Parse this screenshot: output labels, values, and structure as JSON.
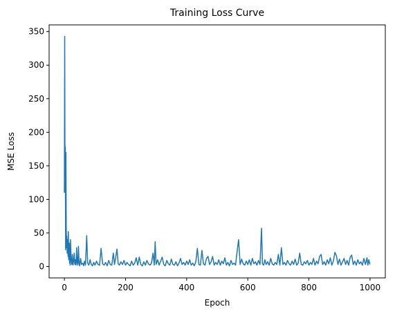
{
  "chart_data": {
    "type": "line",
    "title": "Training Loss Curve",
    "xlabel": "Epoch",
    "ylabel": "MSE Loss",
    "xlim": [
      -50,
      1050
    ],
    "ylim": [
      -17,
      360
    ],
    "x_ticks": [
      0,
      200,
      400,
      600,
      800,
      1000
    ],
    "y_ticks": [
      0,
      50,
      100,
      150,
      200,
      250,
      300,
      350
    ],
    "grid": false,
    "legend": "none",
    "series": [
      {
        "color": "#1f77b4",
        "points": [
          [
            0,
            110
          ],
          [
            1,
            343
          ],
          [
            2,
            130
          ],
          [
            3,
            178
          ],
          [
            4,
            25
          ],
          [
            5,
            170
          ],
          [
            6,
            60
          ],
          [
            7,
            28
          ],
          [
            8,
            45
          ],
          [
            9,
            20
          ],
          [
            10,
            40
          ],
          [
            11,
            30
          ],
          [
            12,
            15
          ],
          [
            13,
            52
          ],
          [
            14,
            10
          ],
          [
            15,
            25
          ],
          [
            16,
            35
          ],
          [
            17,
            5
          ],
          [
            18,
            20
          ],
          [
            19,
            2
          ],
          [
            20,
            40
          ],
          [
            22,
            10
          ],
          [
            24,
            3
          ],
          [
            26,
            18
          ],
          [
            28,
            2
          ],
          [
            30,
            8
          ],
          [
            32,
            20
          ],
          [
            34,
            3
          ],
          [
            36,
            10
          ],
          [
            38,
            2
          ],
          [
            40,
            28
          ],
          [
            42,
            5
          ],
          [
            44,
            2
          ],
          [
            46,
            30
          ],
          [
            48,
            5
          ],
          [
            50,
            1
          ],
          [
            53,
            12
          ],
          [
            56,
            3
          ],
          [
            60,
            5
          ],
          [
            63,
            1
          ],
          [
            66,
            8
          ],
          [
            69,
            2
          ],
          [
            73,
            46
          ],
          [
            76,
            5
          ],
          [
            80,
            2
          ],
          [
            84,
            10
          ],
          [
            88,
            3
          ],
          [
            92,
            1
          ],
          [
            96,
            6
          ],
          [
            100,
            2
          ],
          [
            105,
            8
          ],
          [
            110,
            3
          ],
          [
            115,
            2
          ],
          [
            120,
            27
          ],
          [
            125,
            4
          ],
          [
            130,
            2
          ],
          [
            135,
            6
          ],
          [
            140,
            1
          ],
          [
            145,
            9
          ],
          [
            150,
            3
          ],
          [
            155,
            2
          ],
          [
            160,
            20
          ],
          [
            164,
            3
          ],
          [
            168,
            14
          ],
          [
            172,
            26
          ],
          [
            176,
            4
          ],
          [
            180,
            2
          ],
          [
            185,
            7
          ],
          [
            190,
            3
          ],
          [
            195,
            9
          ],
          [
            200,
            2
          ],
          [
            205,
            6
          ],
          [
            210,
            3
          ],
          [
            215,
            1
          ],
          [
            220,
            8
          ],
          [
            225,
            2
          ],
          [
            230,
            5
          ],
          [
            235,
            13
          ],
          [
            240,
            2
          ],
          [
            245,
            14
          ],
          [
            250,
            3
          ],
          [
            255,
            1
          ],
          [
            260,
            7
          ],
          [
            265,
            2
          ],
          [
            270,
            9
          ],
          [
            275,
            4
          ],
          [
            280,
            2
          ],
          [
            285,
            5
          ],
          [
            290,
            20
          ],
          [
            294,
            2
          ],
          [
            297,
            37
          ],
          [
            300,
            3
          ],
          [
            305,
            10
          ],
          [
            310,
            2
          ],
          [
            315,
            8
          ],
          [
            320,
            14
          ],
          [
            325,
            3
          ],
          [
            330,
            1
          ],
          [
            335,
            9
          ],
          [
            340,
            4
          ],
          [
            345,
            2
          ],
          [
            350,
            11
          ],
          [
            355,
            3
          ],
          [
            360,
            2
          ],
          [
            365,
            7
          ],
          [
            370,
            1
          ],
          [
            375,
            5
          ],
          [
            380,
            12
          ],
          [
            385,
            3
          ],
          [
            390,
            6
          ],
          [
            395,
            2
          ],
          [
            400,
            8
          ],
          [
            405,
            3
          ],
          [
            410,
            10
          ],
          [
            415,
            2
          ],
          [
            420,
            5
          ],
          [
            425,
            1
          ],
          [
            430,
            7
          ],
          [
            435,
            27
          ],
          [
            440,
            3
          ],
          [
            445,
            2
          ],
          [
            450,
            24
          ],
          [
            455,
            4
          ],
          [
            460,
            2
          ],
          [
            465,
            12
          ],
          [
            470,
            15
          ],
          [
            475,
            3
          ],
          [
            480,
            7
          ],
          [
            485,
            15
          ],
          [
            490,
            2
          ],
          [
            495,
            6
          ],
          [
            500,
            3
          ],
          [
            505,
            10
          ],
          [
            510,
            2
          ],
          [
            515,
            8
          ],
          [
            520,
            4
          ],
          [
            525,
            13
          ],
          [
            530,
            2
          ],
          [
            535,
            6
          ],
          [
            540,
            1
          ],
          [
            545,
            9
          ],
          [
            550,
            3
          ],
          [
            555,
            5
          ],
          [
            560,
            2
          ],
          [
            565,
            22
          ],
          [
            570,
            40
          ],
          [
            575,
            3
          ],
          [
            580,
            11
          ],
          [
            585,
            4
          ],
          [
            590,
            2
          ],
          [
            595,
            8
          ],
          [
            600,
            3
          ],
          [
            605,
            10
          ],
          [
            610,
            2
          ],
          [
            615,
            12
          ],
          [
            620,
            4
          ],
          [
            625,
            7
          ],
          [
            630,
            2
          ],
          [
            635,
            9
          ],
          [
            640,
            3
          ],
          [
            645,
            57
          ],
          [
            648,
            4
          ],
          [
            652,
            2
          ],
          [
            656,
            10
          ],
          [
            660,
            3
          ],
          [
            665,
            7
          ],
          [
            670,
            2
          ],
          [
            675,
            12
          ],
          [
            680,
            4
          ],
          [
            685,
            2
          ],
          [
            690,
            6
          ],
          [
            695,
            3
          ],
          [
            700,
            18
          ],
          [
            705,
            2
          ],
          [
            710,
            28
          ],
          [
            715,
            3
          ],
          [
            720,
            6
          ],
          [
            725,
            2
          ],
          [
            730,
            9
          ],
          [
            735,
            4
          ],
          [
            740,
            2
          ],
          [
            745,
            8
          ],
          [
            750,
            3
          ],
          [
            755,
            11
          ],
          [
            760,
            2
          ],
          [
            765,
            5
          ],
          [
            770,
            20
          ],
          [
            775,
            3
          ],
          [
            780,
            2
          ],
          [
            785,
            7
          ],
          [
            790,
            4
          ],
          [
            795,
            9
          ],
          [
            800,
            2
          ],
          [
            805,
            6
          ],
          [
            810,
            3
          ],
          [
            815,
            12
          ],
          [
            820,
            2
          ],
          [
            825,
            8
          ],
          [
            830,
            4
          ],
          [
            835,
            15
          ],
          [
            840,
            18
          ],
          [
            845,
            3
          ],
          [
            850,
            7
          ],
          [
            855,
            2
          ],
          [
            860,
            10
          ],
          [
            865,
            4
          ],
          [
            870,
            13
          ],
          [
            875,
            2
          ],
          [
            880,
            8
          ],
          [
            885,
            21
          ],
          [
            890,
            16
          ],
          [
            895,
            3
          ],
          [
            900,
            11
          ],
          [
            905,
            2
          ],
          [
            910,
            7
          ],
          [
            915,
            12
          ],
          [
            920,
            3
          ],
          [
            925,
            9
          ],
          [
            930,
            2
          ],
          [
            935,
            14
          ],
          [
            940,
            17
          ],
          [
            945,
            3
          ],
          [
            950,
            8
          ],
          [
            955,
            2
          ],
          [
            960,
            10
          ],
          [
            965,
            4
          ],
          [
            970,
            7
          ],
          [
            975,
            2
          ],
          [
            980,
            12
          ],
          [
            985,
            3
          ],
          [
            990,
            13
          ],
          [
            993,
            2
          ],
          [
            996,
            10
          ],
          [
            1000,
            3
          ]
        ]
      }
    ]
  }
}
